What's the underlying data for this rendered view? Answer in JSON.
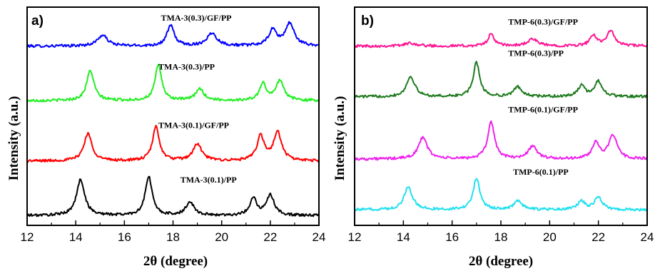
{
  "chart_data": [
    {
      "type": "line",
      "panel_label": "a)",
      "xlabel": "2θ  (degree)",
      "ylabel": "Intensity (a.u.)",
      "xlim": [
        12,
        24
      ],
      "xticks": [
        "12",
        "14",
        "16",
        "18",
        "20",
        "22",
        "24"
      ],
      "series": [
        {
          "name": "TMA-3(0.3)/GF/PP",
          "color": "#0000ff",
          "baseline": 9.2,
          "peaks": [
            {
              "x": 15.1,
              "h": 0.55,
              "w": 0.25
            },
            {
              "x": 17.9,
              "h": 1.05,
              "w": 0.18
            },
            {
              "x": 19.6,
              "h": 0.65,
              "w": 0.25
            },
            {
              "x": 22.1,
              "h": 0.8,
              "w": 0.2
            },
            {
              "x": 22.8,
              "h": 1.15,
              "w": 0.22
            }
          ]
        },
        {
          "name": "TMA-3(0.3)/PP",
          "color": "#22ee22",
          "baseline": 6.4,
          "peaks": [
            {
              "x": 14.6,
              "h": 1.55,
              "w": 0.18
            },
            {
              "x": 17.4,
              "h": 1.85,
              "w": 0.16
            },
            {
              "x": 19.1,
              "h": 0.6,
              "w": 0.2
            },
            {
              "x": 21.7,
              "h": 0.85,
              "w": 0.17
            },
            {
              "x": 22.4,
              "h": 1.05,
              "w": 0.19
            }
          ]
        },
        {
          "name": "TMA-3(0.1)/GF/PP",
          "color": "#ff0000",
          "baseline": 3.3,
          "peaks": [
            {
              "x": 14.5,
              "h": 1.4,
              "w": 0.2
            },
            {
              "x": 17.3,
              "h": 1.75,
              "w": 0.17
            },
            {
              "x": 19.0,
              "h": 0.85,
              "w": 0.22
            },
            {
              "x": 21.6,
              "h": 1.25,
              "w": 0.18
            },
            {
              "x": 22.3,
              "h": 1.45,
              "w": 0.2
            }
          ]
        },
        {
          "name": "TMA-3(0.1)/PP",
          "color": "#000000",
          "baseline": 0.5,
          "peaks": [
            {
              "x": 14.2,
              "h": 1.85,
              "w": 0.2
            },
            {
              "x": 17.0,
              "h": 2.0,
              "w": 0.17
            },
            {
              "x": 18.7,
              "h": 0.7,
              "w": 0.2
            },
            {
              "x": 21.3,
              "h": 0.9,
              "w": 0.17
            },
            {
              "x": 22.0,
              "h": 1.05,
              "w": 0.19
            }
          ]
        }
      ]
    },
    {
      "type": "line",
      "panel_label": "b)",
      "xlabel": "2θ  (degree)",
      "ylabel": "Intensity (a.u.)",
      "xlim": [
        12,
        24
      ],
      "xticks": [
        "12",
        "14",
        "16",
        "18",
        "20",
        "22",
        "24"
      ],
      "series": [
        {
          "name": "TMP-6(0.3)/GF/PP",
          "color": "#ff1493",
          "baseline": 9.2,
          "peaks": [
            {
              "x": 14.3,
              "h": 0.15,
              "w": 0.3
            },
            {
              "x": 17.6,
              "h": 0.6,
              "w": 0.16
            },
            {
              "x": 19.3,
              "h": 0.35,
              "w": 0.25
            },
            {
              "x": 21.8,
              "h": 0.5,
              "w": 0.18
            },
            {
              "x": 22.5,
              "h": 0.75,
              "w": 0.2
            }
          ]
        },
        {
          "name": "TMP-6(0.3)/PP",
          "color": "#1e7a1e",
          "baseline": 6.6,
          "peaks": [
            {
              "x": 14.3,
              "h": 1.05,
              "w": 0.2
            },
            {
              "x": 17.0,
              "h": 1.75,
              "w": 0.16
            },
            {
              "x": 18.7,
              "h": 0.5,
              "w": 0.2
            },
            {
              "x": 21.3,
              "h": 0.55,
              "w": 0.17
            },
            {
              "x": 22.0,
              "h": 0.8,
              "w": 0.19
            }
          ]
        },
        {
          "name": "TMP-6(0.1)/GF/PP",
          "color": "#ee22ee",
          "baseline": 3.4,
          "peaks": [
            {
              "x": 14.8,
              "h": 1.1,
              "w": 0.22
            },
            {
              "x": 17.6,
              "h": 1.9,
              "w": 0.17
            },
            {
              "x": 19.3,
              "h": 0.65,
              "w": 0.22
            },
            {
              "x": 21.9,
              "h": 0.85,
              "w": 0.18
            },
            {
              "x": 22.6,
              "h": 1.2,
              "w": 0.2
            }
          ]
        },
        {
          "name": "TMP-6(0.1)/PP",
          "color": "#22e0f0",
          "baseline": 0.8,
          "peaks": [
            {
              "x": 14.2,
              "h": 1.2,
              "w": 0.2
            },
            {
              "x": 17.0,
              "h": 1.65,
              "w": 0.16
            },
            {
              "x": 18.7,
              "h": 0.45,
              "w": 0.2
            },
            {
              "x": 21.3,
              "h": 0.45,
              "w": 0.17
            },
            {
              "x": 22.0,
              "h": 0.65,
              "w": 0.19
            }
          ]
        }
      ]
    }
  ]
}
